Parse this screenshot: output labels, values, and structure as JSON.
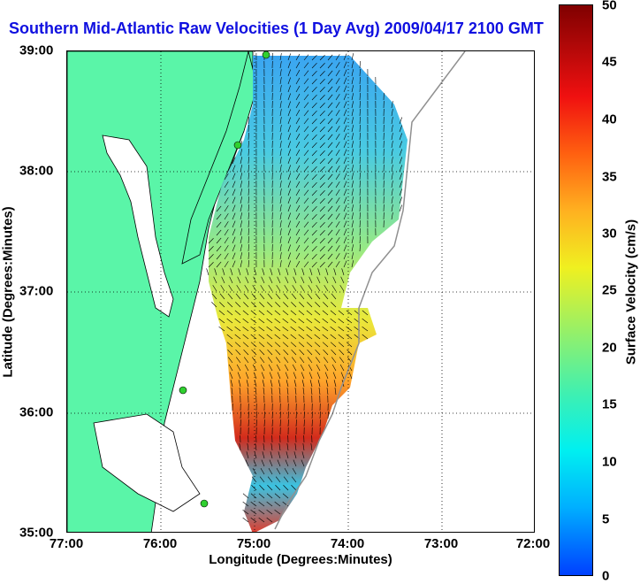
{
  "title": "Southern Mid-Atlantic Raw Velocities (1 Day Avg) 2009/04/17 2100 GMT",
  "x_axis": {
    "label": "Longitude (Degrees:Minutes)",
    "ticks": [
      "77:00",
      "76:00",
      "75:00",
      "74:00",
      "73:00",
      "72:00"
    ],
    "range": [
      -77,
      -72
    ]
  },
  "y_axis": {
    "label": "Latitude (Degrees:Minutes)",
    "ticks": [
      "39:00",
      "38:00",
      "37:00",
      "36:00",
      "35:00"
    ],
    "range": [
      35,
      39
    ]
  },
  "colorbar": {
    "label": "Surface Velocity (cm/s)",
    "ticks": [
      "50",
      "45",
      "40",
      "35",
      "30",
      "25",
      "20",
      "15",
      "10",
      "5",
      "0"
    ],
    "range": [
      0,
      50
    ]
  },
  "colors": {
    "land": "#5af5a8",
    "title": "#1010e0",
    "station": "#30d030"
  }
}
